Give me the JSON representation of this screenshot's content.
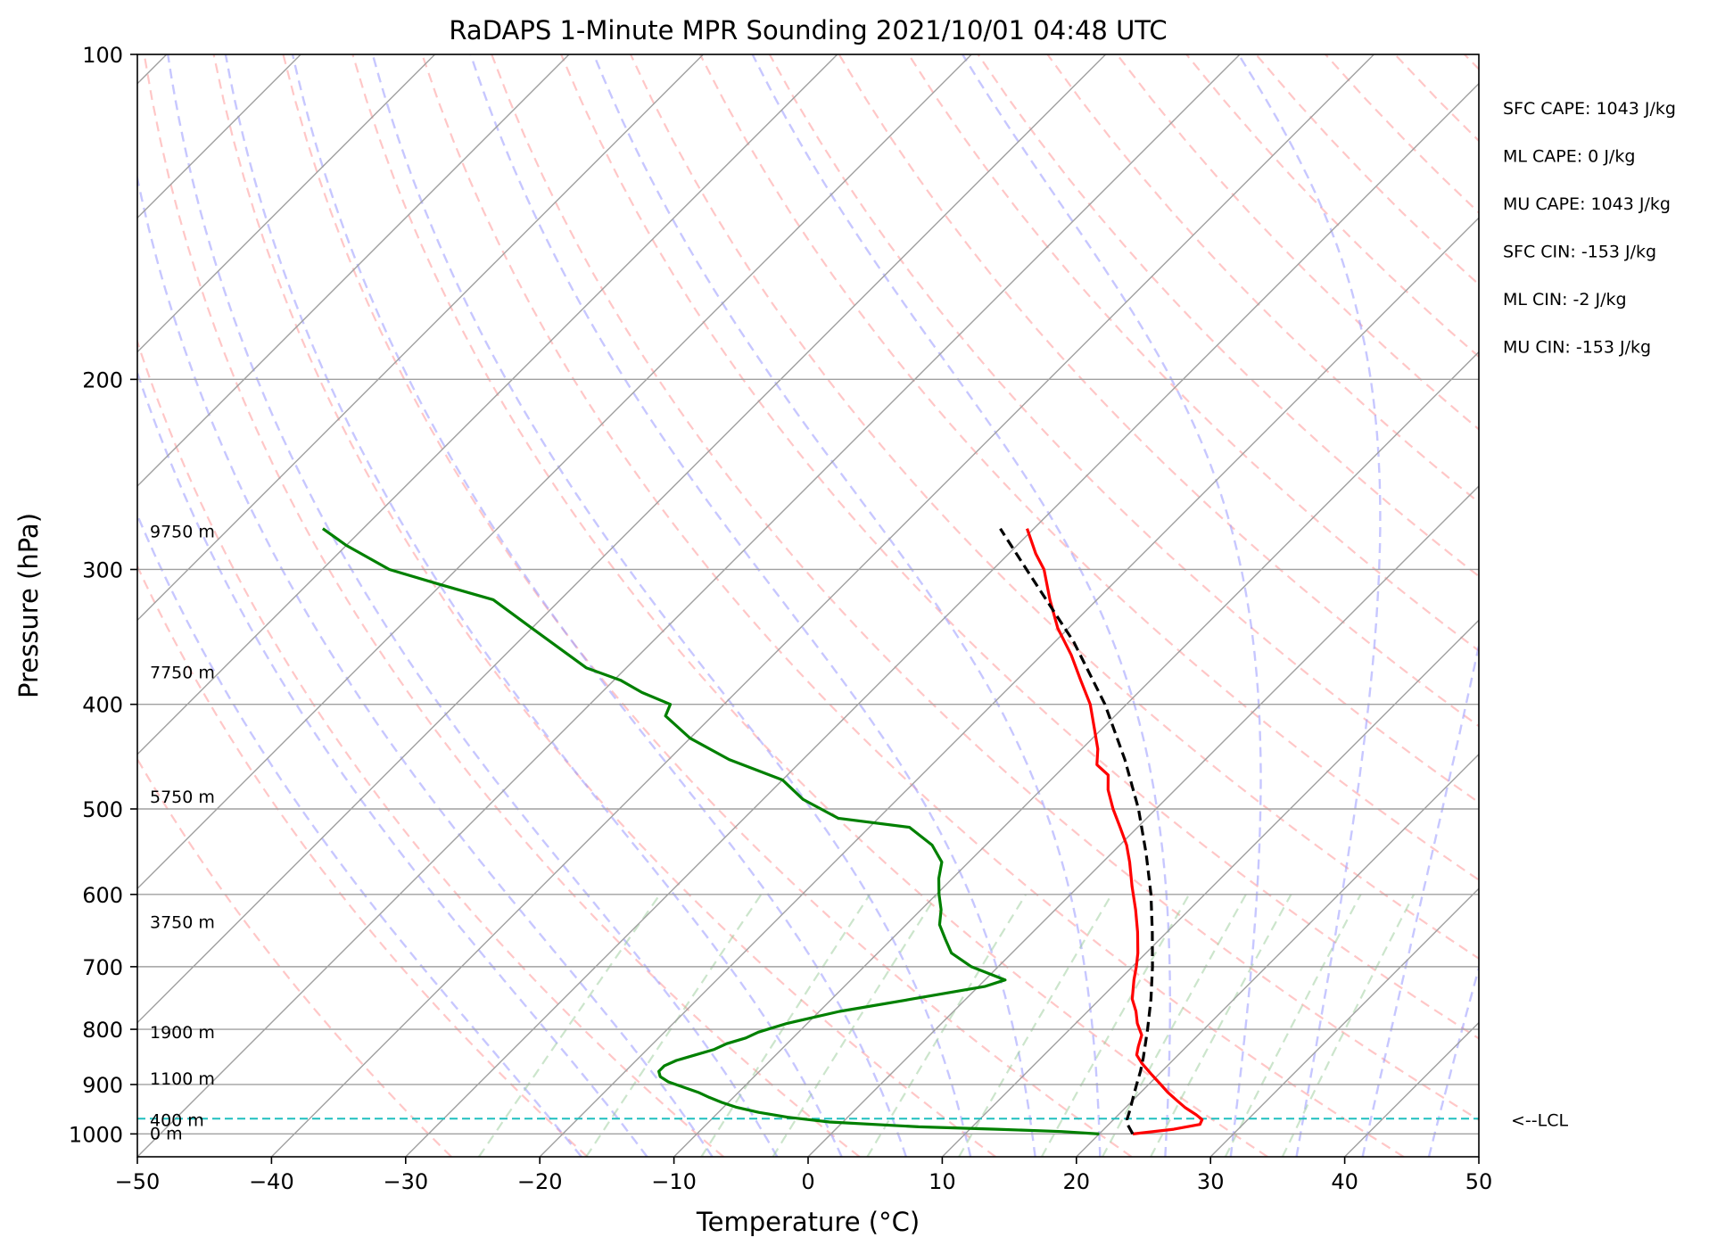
{
  "chart_data": {
    "type": "skew-t",
    "title": "RaDAPS 1-Minute MPR Sounding 2021/10/01 04:48 UTC",
    "xlabel": "Temperature (°C)",
    "ylabel": "Pressure (hPa)",
    "xlim": [
      -50,
      50
    ],
    "ylim": [
      1050,
      100
    ],
    "log_y": true,
    "skew_deg": 45,
    "x_ticks": [
      -50,
      -40,
      -30,
      -20,
      -10,
      0,
      10,
      20,
      30,
      40,
      50
    ],
    "x_tick_labels": [
      "−50",
      "−40",
      "−30",
      "−20",
      "−10",
      "0",
      "10",
      "20",
      "30",
      "40",
      "50"
    ],
    "y_ticks": [
      1000,
      900,
      800,
      700,
      600,
      500,
      400,
      300,
      200,
      100
    ],
    "y_tick_labels": [
      "1000",
      "900",
      "800",
      "700",
      "600",
      "500",
      "400",
      "300",
      "200",
      "100"
    ],
    "colors": {
      "temperature": "#ff0000",
      "dewpoint": "#008000",
      "parcel": "#000000",
      "lcl_line": "#1fbfbf",
      "dry_adiabat": "#ff9999",
      "moist_adiabat": "#9999ff",
      "mixing_ratio": "#99cc99",
      "isotherm": "#a0a0a0"
    },
    "series": [
      {
        "key": "temperature",
        "p": [
          1000,
          990,
          980,
          970,
          960,
          945,
          930,
          915,
          900,
          880,
          860,
          845,
          830,
          810,
          790,
          770,
          750,
          720,
          700,
          680,
          650,
          620,
          590,
          560,
          540,
          520,
          500,
          480,
          465,
          455,
          440,
          420,
          400,
          380,
          360,
          340,
          320,
          300,
          290,
          275
        ],
        "t": [
          22.5,
          25.2,
          26.8,
          26.6,
          25.8,
          24.4,
          23.2,
          22.0,
          20.9,
          19.4,
          17.9,
          16.9,
          16.4,
          15.8,
          14.6,
          13.6,
          12.4,
          11.1,
          10.3,
          9.4,
          7.8,
          6.0,
          4.0,
          2.0,
          0.5,
          -1.3,
          -3.2,
          -5.0,
          -6.1,
          -7.7,
          -8.8,
          -10.7,
          -12.7,
          -15.2,
          -17.8,
          -20.8,
          -23.5,
          -26.2,
          -28.0,
          -30.5
        ]
      },
      {
        "key": "dewpoint",
        "p": [
          1000,
          995,
          990,
          985,
          975,
          965,
          955,
          945,
          935,
          925,
          915,
          905,
          895,
          885,
          875,
          865,
          855,
          845,
          835,
          825,
          815,
          805,
          790,
          770,
          750,
          730,
          720,
          700,
          680,
          660,
          640,
          620,
          600,
          580,
          560,
          540,
          520,
          510,
          490,
          470,
          450,
          430,
          410,
          400,
          390,
          380,
          370,
          340,
          320,
          310,
          300,
          285,
          275
        ],
        "t": [
          20.0,
          17.0,
          12.0,
          6.0,
          -1.0,
          -4.5,
          -7.0,
          -9.0,
          -10.5,
          -11.8,
          -13.0,
          -14.5,
          -16.0,
          -17.0,
          -17.5,
          -17.5,
          -17.0,
          -16.0,
          -15.0,
          -14.5,
          -13.5,
          -13.0,
          -11.5,
          -8.5,
          -4.0,
          0.5,
          1.5,
          -2.0,
          -4.5,
          -6.0,
          -7.5,
          -8.5,
          -9.8,
          -11.0,
          -12.0,
          -14.0,
          -17.0,
          -23.0,
          -27.0,
          -30.0,
          -35.5,
          -40.0,
          -43.5,
          -44.0,
          -47.0,
          -49.5,
          -53.0,
          -60.0,
          -65.0,
          -70.0,
          -75.0,
          -80.0,
          -83.0
        ]
      },
      {
        "key": "parcel",
        "p": [
          1000,
          980,
          970,
          950,
          925,
          900,
          875,
          850,
          800,
          750,
          700,
          650,
          600,
          550,
          500,
          450,
          400,
          350,
          300,
          275
        ],
        "t": [
          22.5,
          21.4,
          21.0,
          20.5,
          19.8,
          19.1,
          18.4,
          17.6,
          15.8,
          13.8,
          11.5,
          8.9,
          6.0,
          2.6,
          -1.3,
          -6.0,
          -11.6,
          -18.6,
          -27.5,
          -32.5
        ]
      }
    ],
    "lcl_pressure": 968,
    "lcl_label": "<--LCL",
    "height_labels": [
      {
        "p": 1000,
        "text": "0 m"
      },
      {
        "p": 972,
        "text": "400 m"
      },
      {
        "p": 890,
        "text": "1100 m"
      },
      {
        "p": 806,
        "text": "1900 m"
      },
      {
        "p": 637,
        "text": "3750 m"
      },
      {
        "p": 488,
        "text": "5750 m"
      },
      {
        "p": 374,
        "text": "7750 m"
      },
      {
        "p": 277,
        "text": "9750 m"
      }
    ],
    "indices": [
      "SFC CAPE: 1043 J/kg",
      "ML CAPE: 0 J/kg",
      "MU CAPE: 1043 J/kg",
      "SFC CIN: -153 J/kg",
      "ML CIN: -2 J/kg",
      "MU CIN: -153 J/kg"
    ]
  }
}
